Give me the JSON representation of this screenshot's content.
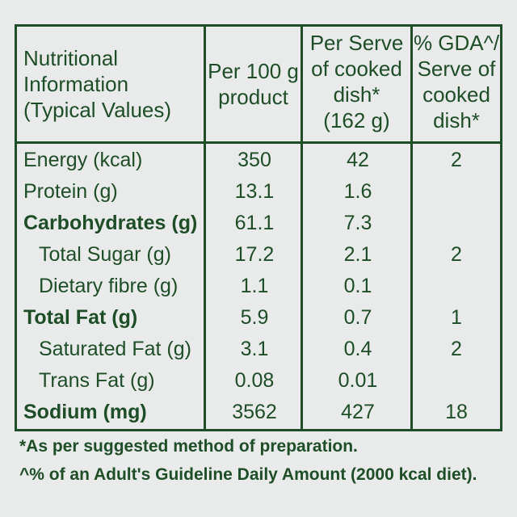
{
  "table": {
    "headers": [
      "Nutritional\nInformation\n(Typical Values)",
      "Per 100 g\nproduct",
      "Per Serve\nof cooked\ndish*\n(162 g)",
      "% GDA^/\nServe of\ncooked\ndish*"
    ],
    "rows": [
      {
        "label": "Energy (kcal)",
        "per100": "350",
        "perServe": "42",
        "gda": "2"
      },
      {
        "label": "Protein (g)",
        "per100": "13.1",
        "perServe": "1.6",
        "gda": ""
      },
      {
        "label": "Carbohydrates (g)",
        "per100": "61.1",
        "perServe": "7.3",
        "gda": ""
      },
      {
        "label": "Total Sugar (g)",
        "per100": "17.2",
        "perServe": "2.1",
        "gda": "2"
      },
      {
        "label": "Dietary fibre (g)",
        "per100": "1.1",
        "perServe": "0.1",
        "gda": ""
      },
      {
        "label": "Total Fat (g)",
        "per100": "5.9",
        "perServe": "0.7",
        "gda": "1"
      },
      {
        "label": "Saturated Fat (g)",
        "per100": "3.1",
        "perServe": "0.4",
        "gda": "2"
      },
      {
        "label": "Trans Fat (g)",
        "per100": "0.08",
        "perServe": "0.01",
        "gda": ""
      },
      {
        "label": "Sodium (mg)",
        "per100": "3562",
        "perServe": "427",
        "gda": "18"
      }
    ]
  },
  "footnotes": {
    "serve": "*As per suggested method of preparation.",
    "gda": "^% of an Adult's Guideline Daily Amount (2000 kcal diet)."
  },
  "colors": {
    "text": "#1e4d28",
    "background": "#e8ebe9"
  }
}
